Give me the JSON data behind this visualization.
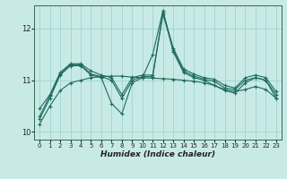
{
  "xlabel": "Humidex (Indice chaleur)",
  "xlim": [
    -0.5,
    23.5
  ],
  "ylim": [
    9.85,
    12.45
  ],
  "yticks": [
    10,
    11,
    12
  ],
  "xticks": [
    0,
    1,
    2,
    3,
    4,
    5,
    6,
    7,
    8,
    9,
    10,
    11,
    12,
    13,
    14,
    15,
    16,
    17,
    18,
    19,
    20,
    21,
    22,
    23
  ],
  "bg_color": "#c8eae6",
  "grid_color": "#9dd4ce",
  "line_color": "#1e6b5e",
  "lines": [
    {
      "x": [
        0,
        1,
        2,
        3,
        4,
        5,
        6,
        7,
        8,
        9,
        10,
        11,
        12,
        13,
        14,
        15,
        16,
        17,
        18,
        19,
        20,
        21,
        22,
        23
      ],
      "y": [
        10.25,
        10.65,
        11.1,
        11.28,
        11.28,
        11.1,
        11.05,
        10.55,
        10.35,
        10.95,
        11.05,
        11.5,
        12.35,
        11.55,
        11.15,
        11.05,
        11.0,
        10.9,
        10.8,
        10.75,
        10.95,
        11.05,
        11.0,
        10.65
      ]
    },
    {
      "x": [
        0,
        1,
        2,
        3,
        4,
        5,
        6,
        7,
        8,
        9,
        10,
        11,
        12,
        13,
        14,
        15,
        16,
        17,
        18,
        19,
        20,
        21,
        22,
        23
      ],
      "y": [
        10.3,
        10.7,
        11.12,
        11.3,
        11.3,
        11.12,
        11.07,
        11.0,
        10.65,
        11.0,
        11.07,
        11.07,
        12.28,
        11.58,
        11.18,
        11.08,
        11.02,
        10.98,
        10.85,
        10.82,
        11.0,
        11.05,
        11.0,
        10.72
      ]
    },
    {
      "x": [
        0,
        1,
        2,
        3,
        4,
        5,
        6,
        7,
        8,
        9,
        10,
        11,
        12,
        13,
        14,
        15,
        16,
        17,
        18,
        19,
        20,
        21,
        22,
        23
      ],
      "y": [
        10.45,
        10.72,
        11.15,
        11.32,
        11.32,
        11.18,
        11.1,
        11.05,
        10.72,
        11.05,
        11.1,
        11.1,
        12.32,
        11.62,
        11.22,
        11.12,
        11.05,
        11.02,
        10.9,
        10.85,
        11.05,
        11.1,
        11.05,
        10.78
      ]
    },
    {
      "x": [
        0,
        1,
        2,
        3,
        4,
        5,
        6,
        7,
        8,
        9,
        10,
        11,
        12,
        13,
        14,
        15,
        16,
        17,
        18,
        19,
        20,
        21,
        22,
        23
      ],
      "y": [
        10.15,
        10.5,
        10.8,
        10.95,
        11.0,
        11.05,
        11.07,
        11.08,
        11.08,
        11.06,
        11.05,
        11.04,
        11.03,
        11.02,
        11.0,
        10.98,
        10.95,
        10.9,
        10.82,
        10.78,
        10.82,
        10.88,
        10.82,
        10.65
      ]
    }
  ]
}
